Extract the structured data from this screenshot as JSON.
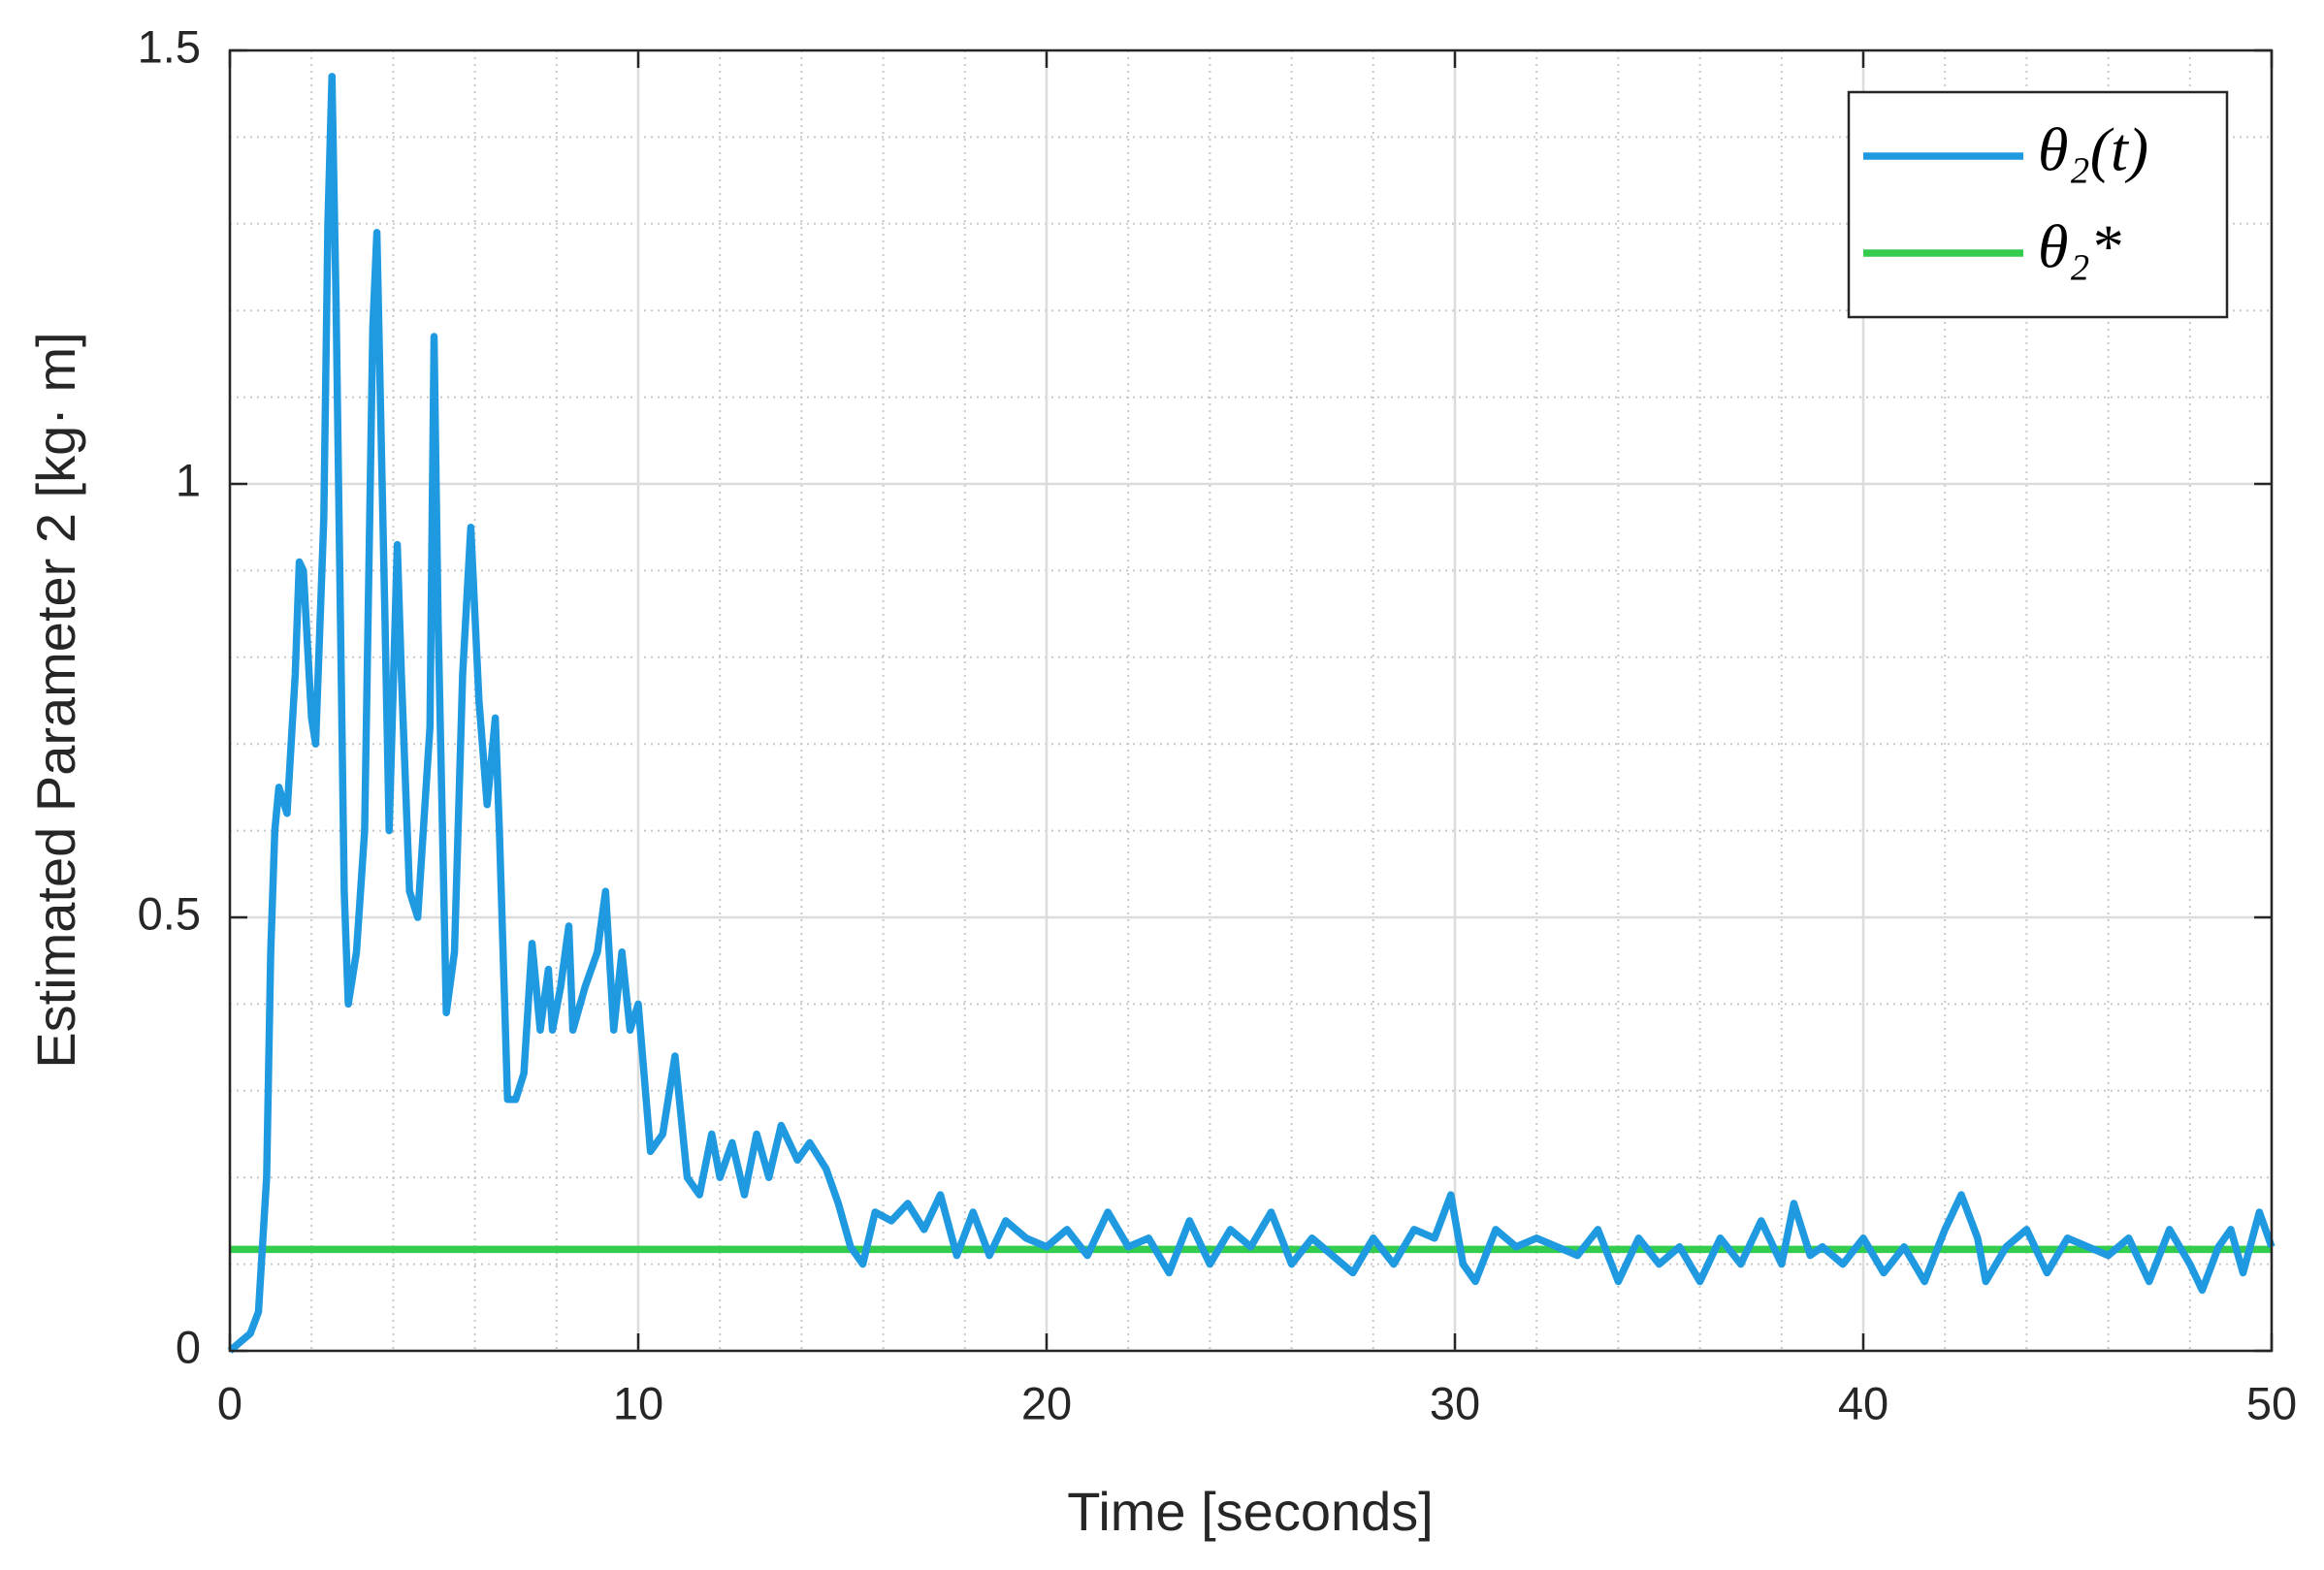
{
  "chart_data": {
    "type": "line",
    "xlabel": "Time [seconds]",
    "ylabel": "Estimated Parameter 2 [kg· m]",
    "xlim": [
      0,
      50
    ],
    "ylim": [
      0,
      1.5
    ],
    "xticks": [
      0,
      10,
      20,
      30,
      40,
      50
    ],
    "yticks": [
      0,
      0.5,
      1,
      1.5
    ],
    "xminorticks": [
      2,
      4,
      6,
      8,
      12,
      14,
      16,
      18,
      22,
      24,
      26,
      28,
      32,
      34,
      36,
      38,
      42,
      44,
      46,
      48
    ],
    "yminorticks": [
      0.1,
      0.2,
      0.3,
      0.4,
      0.6,
      0.7,
      0.8,
      0.9,
      1.1,
      1.2,
      1.3,
      1.4
    ],
    "grid": true,
    "minor_grid": true,
    "legend": "upper right",
    "series": [
      {
        "name": "θ₂(t)",
        "color": "#1f9ae0",
        "x": [
          0,
          0.5,
          0.7,
          0.9,
          1.0,
          1.1,
          1.2,
          1.4,
          1.6,
          1.7,
          1.8,
          2.0,
          2.1,
          2.3,
          2.4,
          2.5,
          2.6,
          2.8,
          2.9,
          3.1,
          3.3,
          3.5,
          3.6,
          3.8,
          3.9,
          4.1,
          4.2,
          4.4,
          4.6,
          4.9,
          5.0,
          5.1,
          5.3,
          5.5,
          5.7,
          5.9,
          6.1,
          6.3,
          6.5,
          6.6,
          6.8,
          7.0,
          7.2,
          7.4,
          7.6,
          7.8,
          7.9,
          8.1,
          8.3,
          8.4,
          8.7,
          9.0,
          9.2,
          9.4,
          9.6,
          9.8,
          10.0,
          10.3,
          10.6,
          10.9,
          11.2,
          11.5,
          11.8,
          12.0,
          12.3,
          12.6,
          12.9,
          13.2,
          13.5,
          13.9,
          14.2,
          14.6,
          14.9,
          15.2,
          15.5,
          15.8,
          16.2,
          16.6,
          17.0,
          17.4,
          17.8,
          18.2,
          18.6,
          19.0,
          19.5,
          20,
          20.5,
          21,
          21.5,
          22,
          22.5,
          23,
          23.5,
          24,
          24.5,
          25,
          25.5,
          26,
          26.5,
          27,
          27.5,
          28,
          28.5,
          29,
          29.5,
          29.9,
          30.2,
          30.5,
          31,
          31.5,
          32,
          32.5,
          33,
          33.5,
          34,
          34.5,
          35,
          35.5,
          36,
          36.5,
          37,
          37.5,
          38,
          38.3,
          38.7,
          39,
          39.5,
          40,
          40.5,
          41,
          41.5,
          42,
          42.4,
          42.8,
          43,
          43.5,
          44,
          44.5,
          45,
          45.5,
          46,
          46.5,
          47,
          47.5,
          48,
          48.3,
          48.7,
          49,
          49.3,
          49.7,
          50
        ],
        "values": [
          0,
          0.02,
          0.045,
          0.2,
          0.46,
          0.6,
          0.65,
          0.62,
          0.78,
          0.91,
          0.9,
          0.73,
          0.7,
          0.96,
          1.3,
          1.47,
          1.21,
          0.53,
          0.4,
          0.46,
          0.6,
          1.18,
          1.29,
          0.84,
          0.6,
          0.93,
          0.78,
          0.53,
          0.5,
          0.72,
          1.17,
          0.84,
          0.39,
          0.46,
          0.78,
          0.95,
          0.75,
          0.63,
          0.73,
          0.6,
          0.29,
          0.29,
          0.32,
          0.47,
          0.37,
          0.44,
          0.37,
          0.42,
          0.49,
          0.37,
          0.42,
          0.46,
          0.53,
          0.37,
          0.46,
          0.37,
          0.4,
          0.23,
          0.25,
          0.34,
          0.2,
          0.18,
          0.25,
          0.2,
          0.24,
          0.18,
          0.25,
          0.2,
          0.26,
          0.22,
          0.24,
          0.21,
          0.17,
          0.12,
          0.1,
          0.16,
          0.15,
          0.17,
          0.14,
          0.18,
          0.11,
          0.16,
          0.11,
          0.15,
          0.13,
          0.12,
          0.14,
          0.11,
          0.16,
          0.12,
          0.13,
          0.09,
          0.15,
          0.1,
          0.14,
          0.12,
          0.16,
          0.1,
          0.13,
          0.11,
          0.09,
          0.13,
          0.1,
          0.14,
          0.13,
          0.18,
          0.1,
          0.08,
          0.14,
          0.12,
          0.13,
          0.12,
          0.11,
          0.14,
          0.08,
          0.13,
          0.1,
          0.12,
          0.08,
          0.13,
          0.1,
          0.15,
          0.1,
          0.17,
          0.11,
          0.12,
          0.1,
          0.13,
          0.09,
          0.12,
          0.08,
          0.14,
          0.18,
          0.13,
          0.08,
          0.12,
          0.14,
          0.09,
          0.13,
          0.12,
          0.11,
          0.13,
          0.08,
          0.14,
          0.1,
          0.07,
          0.12,
          0.14,
          0.09,
          0.16,
          0.12
        ]
      },
      {
        "name": "θ₂*",
        "color": "#33cc4d",
        "x": [
          0,
          50
        ],
        "values": [
          0.117,
          0.117
        ]
      }
    ]
  }
}
